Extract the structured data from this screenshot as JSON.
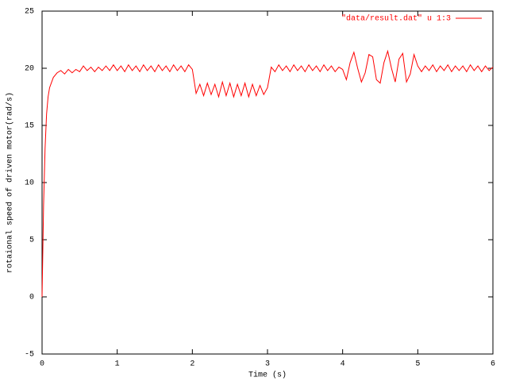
{
  "chart_data": {
    "type": "line",
    "x_label": "Time (s)",
    "y_label": "rotaional speed of driven motor(rad/s)",
    "xlim": [
      0,
      6
    ],
    "xticks": [
      0,
      1,
      2,
      3,
      4,
      5,
      6
    ],
    "ylim": [
      -5,
      25
    ],
    "yticks": [
      -5,
      0,
      5,
      10,
      15,
      20,
      25
    ],
    "legend": "top-right",
    "x": [
      0,
      0.02,
      0.04,
      0.06,
      0.08,
      0.1,
      0.15,
      0.2,
      0.25,
      0.3,
      0.35,
      0.4,
      0.45,
      0.5,
      0.55,
      0.6,
      0.65,
      0.7,
      0.75,
      0.8,
      0.85,
      0.9,
      0.95,
      1.0,
      1.05,
      1.1,
      1.15,
      1.2,
      1.25,
      1.3,
      1.35,
      1.4,
      1.45,
      1.5,
      1.55,
      1.6,
      1.65,
      1.7,
      1.75,
      1.8,
      1.85,
      1.9,
      1.95,
      2.0,
      2.05,
      2.1,
      2.15,
      2.2,
      2.25,
      2.3,
      2.35,
      2.4,
      2.45,
      2.5,
      2.55,
      2.6,
      2.65,
      2.7,
      2.75,
      2.8,
      2.85,
      2.9,
      2.95,
      3.0,
      3.05,
      3.1,
      3.15,
      3.2,
      3.25,
      3.3,
      3.35,
      3.4,
      3.45,
      3.5,
      3.55,
      3.6,
      3.65,
      3.7,
      3.75,
      3.8,
      3.85,
      3.9,
      3.95,
      4.0,
      4.05,
      4.1,
      4.15,
      4.2,
      4.25,
      4.3,
      4.35,
      4.4,
      4.45,
      4.5,
      4.55,
      4.6,
      4.65,
      4.7,
      4.75,
      4.8,
      4.85,
      4.9,
      4.95,
      5.0,
      5.05,
      5.1,
      5.15,
      5.2,
      5.25,
      5.3,
      5.35,
      5.4,
      5.45,
      5.5,
      5.55,
      5.6,
      5.65,
      5.7,
      5.75,
      5.8,
      5.85,
      5.9,
      5.95,
      6.0
    ],
    "series": [
      {
        "name": "\"data/result.dat\" u 1:3",
        "color": "#ff0000",
        "values": [
          0,
          8,
          13,
          16,
          17.5,
          18.3,
          19.2,
          19.6,
          19.8,
          19.5,
          19.9,
          19.6,
          19.9,
          19.7,
          20.2,
          19.8,
          20.1,
          19.7,
          20.1,
          19.8,
          20.2,
          19.8,
          20.3,
          19.8,
          20.2,
          19.7,
          20.3,
          19.8,
          20.2,
          19.7,
          20.3,
          19.8,
          20.2,
          19.7,
          20.3,
          19.8,
          20.2,
          19.7,
          20.3,
          19.8,
          20.2,
          19.7,
          20.3,
          19.9,
          17.8,
          18.6,
          17.6,
          18.7,
          17.7,
          18.6,
          17.5,
          18.8,
          17.6,
          18.7,
          17.5,
          18.6,
          17.6,
          18.7,
          17.5,
          18.6,
          17.6,
          18.5,
          17.7,
          18.3,
          20.1,
          19.7,
          20.3,
          19.8,
          20.2,
          19.7,
          20.3,
          19.8,
          20.2,
          19.7,
          20.3,
          19.8,
          20.2,
          19.7,
          20.3,
          19.8,
          20.2,
          19.7,
          20.1,
          19.9,
          19.0,
          20.5,
          21.4,
          20.0,
          18.8,
          19.6,
          21.2,
          21.0,
          19.0,
          18.7,
          20.5,
          21.5,
          20.0,
          18.8,
          20.8,
          21.3,
          18.8,
          19.5,
          21.2,
          20.2,
          19.7,
          20.2,
          19.8,
          20.3,
          19.7,
          20.2,
          19.8,
          20.3,
          19.7,
          20.2,
          19.8,
          20.2,
          19.7,
          20.3,
          19.8,
          20.2,
          19.7,
          20.2,
          19.8,
          20.1
        ]
      }
    ]
  }
}
